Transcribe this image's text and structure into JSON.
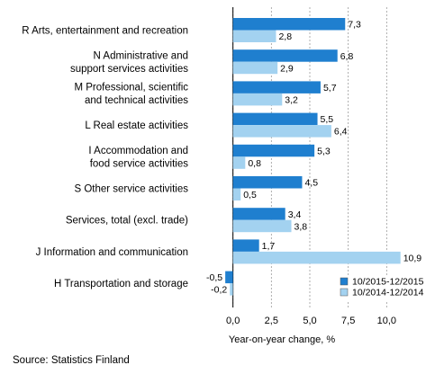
{
  "chart_data": {
    "type": "bar",
    "orientation": "horizontal",
    "title": "",
    "xlabel": "Year-on-year change, %",
    "ylabel": "",
    "xlim": [
      -2.5,
      12.5
    ],
    "x_ticks": [
      0,
      2.5,
      5,
      7.5,
      10
    ],
    "x_tick_labels": [
      "0,0",
      "2,5",
      "5,0",
      "7,5",
      "10,0"
    ],
    "grid": "vertical dashed",
    "legend_position": "bottom-right",
    "categories": [
      [
        "R Arts, entertainment and recreation"
      ],
      [
        "N Administrative and",
        "support services activities"
      ],
      [
        "M Professional, scientific",
        "and technical activities"
      ],
      [
        "L Real estate activities"
      ],
      [
        "I Accommodation and",
        "food service activities"
      ],
      [
        "S Other service activities"
      ],
      [
        "Services, total (excl. trade)"
      ],
      [
        "J Information and communication"
      ],
      [
        "H Transportation and storage"
      ]
    ],
    "series": [
      {
        "name": "10/2015-12/2015",
        "color": "#1f7fcf",
        "values": [
          7.3,
          6.8,
          5.7,
          5.5,
          5.3,
          4.5,
          3.4,
          1.7,
          -0.5
        ],
        "labels": [
          "7,3",
          "6,8",
          "5,7",
          "5,5",
          "5,3",
          "4,5",
          "3,4",
          "1,7",
          "-0,5"
        ]
      },
      {
        "name": "10/2014-12/2014",
        "color": "#a3d2f0",
        "values": [
          2.8,
          2.9,
          3.2,
          6.4,
          0.8,
          0.5,
          3.8,
          10.9,
          -0.2
        ],
        "labels": [
          "2,8",
          "2,9",
          "3,2",
          "6,4",
          "0,8",
          "0,5",
          "3,8",
          "10,9",
          "-0,2"
        ]
      }
    ]
  },
  "source": "Source: Statistics Finland"
}
